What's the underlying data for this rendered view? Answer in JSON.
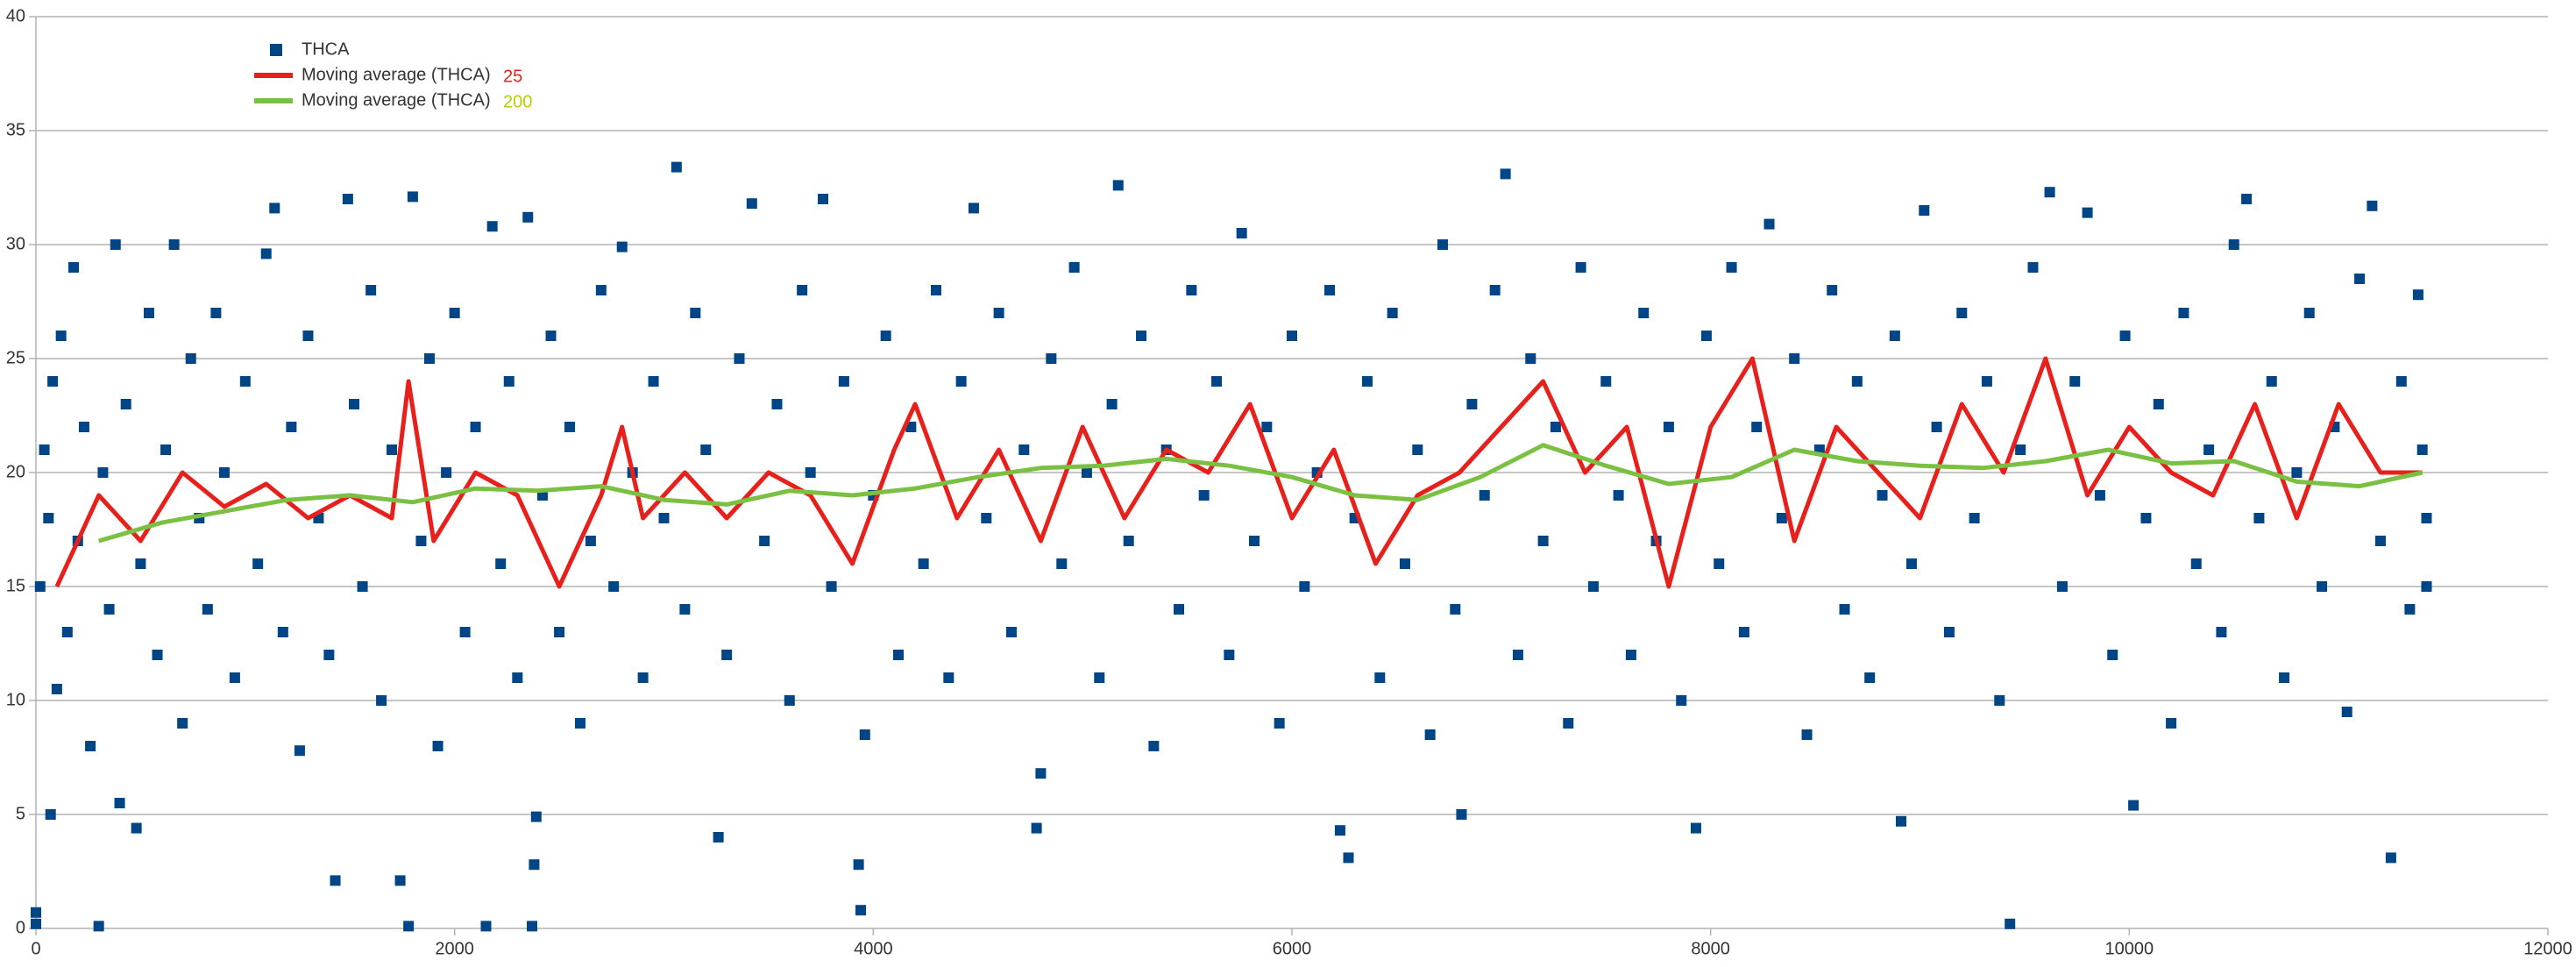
{
  "chart_data": {
    "type": "scatter",
    "xlim": [
      0,
      12000
    ],
    "xticks": [
      0,
      2000,
      4000,
      6000,
      8000,
      10000,
      12000
    ],
    "ylim": [
      0,
      40
    ],
    "yticks": [
      0,
      5,
      10,
      15,
      20,
      25,
      30,
      35,
      40
    ],
    "grid": true,
    "legend": "top-left",
    "series": [
      {
        "name": "THCA",
        "type": "scatter",
        "color": "#004586",
        "x": [
          0,
          0,
          20,
          40,
          60,
          70,
          80,
          100,
          120,
          150,
          180,
          200,
          230,
          260,
          300,
          320,
          350,
          380,
          400,
          430,
          480,
          500,
          540,
          580,
          620,
          660,
          700,
          740,
          780,
          820,
          860,
          900,
          950,
          1000,
          1060,
          1100,
          1140,
          1180,
          1220,
          1260,
          1300,
          1350,
          1400,
          1430,
          1490,
          1520,
          1560,
          1600,
          1650,
          1700,
          1740,
          1780,
          1800,
          1840,
          1880,
          1920,
          1960,
          2000,
          2050,
          2100,
          2150,
          2180,
          2220,
          2260,
          2300,
          2350,
          2370,
          2380,
          2390,
          2420,
          2460,
          2500,
          2550,
          2600,
          2650,
          2700,
          2760,
          2800,
          2850,
          2900,
          2950,
          3000,
          3060,
          3100,
          3150,
          3200,
          3260,
          3300,
          3360,
          3420,
          3480,
          3540,
          3600,
          3660,
          3700,
          3760,
          3800,
          3860,
          3930,
          3940,
          3960,
          4000,
          4060,
          4120,
          4180,
          4240,
          4300,
          4360,
          4420,
          4480,
          4540,
          4600,
          4660,
          4720,
          4780,
          4800,
          4850,
          4900,
          4960,
          5020,
          5080,
          5140,
          5170,
          5220,
          5280,
          5340,
          5400,
          5460,
          5520,
          5580,
          5640,
          5700,
          5760,
          5820,
          5880,
          5940,
          6000,
          6060,
          6120,
          6180,
          6230,
          6270,
          6300,
          6360,
          6420,
          6480,
          6540,
          6600,
          6660,
          6720,
          6780,
          6810,
          6860,
          6920,
          6970,
          7020,
          7080,
          7140,
          7200,
          7260,
          7320,
          7380,
          7440,
          7500,
          7560,
          7620,
          7680,
          7740,
          7800,
          7860,
          7930,
          7980,
          8040,
          8100,
          8160,
          8220,
          8280,
          8340,
          8400,
          8460,
          8520,
          8580,
          8640,
          8700,
          8760,
          8820,
          8880,
          8910,
          8960,
          9020,
          9080,
          9140,
          9200,
          9260,
          9320,
          9380,
          9430,
          9480,
          9540,
          9620,
          9680,
          9740,
          9800,
          9860,
          9920,
          9980,
          10020,
          10080,
          10140,
          10200,
          10260,
          10320,
          10380,
          10440,
          10500,
          10560,
          10620,
          10680,
          10740,
          10800,
          10860,
          10920,
          10980,
          11040,
          11100,
          11160,
          11200,
          11250,
          11300,
          11340,
          11380,
          11400,
          11420,
          11420
        ],
        "values": [
          0.2,
          0.7,
          15,
          21,
          18,
          5,
          24,
          10.5,
          26,
          13,
          29,
          17,
          22,
          8,
          0.1,
          20,
          14,
          30,
          5.5,
          23,
          4.4,
          16,
          27,
          12,
          21,
          30,
          9,
          25,
          18,
          14,
          27,
          20,
          11,
          24,
          16,
          29.6,
          31.6,
          13,
          22,
          7.8,
          26,
          18,
          12,
          2.1,
          32,
          23,
          15,
          28,
          10,
          21,
          2.1,
          0.1,
          32.1,
          17,
          25,
          8,
          20,
          27,
          13,
          22,
          0.1,
          30.8,
          16,
          24,
          11,
          31.2,
          0.1,
          2.8,
          4.9,
          19,
          26,
          13,
          22,
          9,
          17,
          28,
          15,
          29.9,
          20,
          11,
          24,
          18,
          33.4,
          14,
          27,
          21,
          4,
          12,
          25,
          31.8,
          17,
          23,
          10,
          28,
          20,
          32,
          15,
          24,
          2.8,
          0.8,
          8.5,
          19,
          26,
          12,
          22,
          16,
          28,
          11,
          24,
          31.6,
          18,
          27,
          13,
          21,
          4.4,
          6.8,
          25,
          16,
          29,
          20,
          11,
          23,
          32.6,
          17,
          26,
          8,
          21,
          14,
          28,
          19,
          24,
          12,
          30.5,
          17,
          22,
          9,
          26,
          15,
          20,
          28,
          4.3,
          3.1,
          18,
          24,
          11,
          27,
          16,
          21,
          8.5,
          30,
          14,
          5,
          23,
          19,
          28,
          33.1,
          12,
          25,
          17,
          22,
          9,
          29,
          15,
          24,
          19,
          12,
          27,
          17,
          22,
          10,
          4.4,
          26,
          16,
          29,
          13,
          22,
          30.9,
          18,
          25,
          8.5,
          21,
          28,
          14,
          24,
          11,
          19,
          26,
          4.7,
          16,
          31.5,
          22,
          13,
          27,
          18,
          24,
          10,
          0.2,
          21,
          29,
          32.3,
          15,
          24,
          31.4,
          19,
          12,
          26,
          5.4,
          18,
          23,
          9,
          27,
          16,
          21,
          13,
          30,
          32,
          18,
          24,
          11,
          20,
          27,
          15,
          22,
          9.5,
          28.5,
          31.7,
          17,
          3.1,
          24,
          14,
          27.8,
          21,
          15,
          18
        ]
      },
      {
        "name": "Moving average (THCA)",
        "type": "line",
        "color": "#e8201c",
        "period": 25,
        "period_color": "#e8201c",
        "x": [
          100,
          300,
          500,
          700,
          900,
          1100,
          1300,
          1500,
          1700,
          1780,
          1900,
          2100,
          2300,
          2500,
          2700,
          2800,
          2900,
          3100,
          3300,
          3500,
          3700,
          3900,
          4100,
          4200,
          4400,
          4600,
          4800,
          5000,
          5200,
          5400,
          5600,
          5800,
          6000,
          6200,
          6400,
          6600,
          6800,
          7000,
          7200,
          7400,
          7600,
          7800,
          8000,
          8200,
          8400,
          8600,
          8800,
          9000,
          9200,
          9400,
          9600,
          9800,
          10000,
          10200,
          10400,
          10600,
          10800,
          11000,
          11200,
          11400
        ],
        "values": [
          15,
          19,
          17,
          20,
          18.5,
          19.5,
          18,
          19,
          18,
          24,
          17,
          20,
          19,
          15,
          19,
          22,
          18,
          20,
          18,
          20,
          19,
          16,
          21,
          23,
          18,
          21,
          17,
          22,
          18,
          21,
          20,
          23,
          18,
          21,
          16,
          19,
          20,
          22,
          24,
          20,
          22,
          15,
          22,
          25,
          17,
          22,
          20,
          18,
          23,
          20,
          25,
          19,
          22,
          20,
          19,
          23,
          18,
          23,
          20,
          20
        ]
      },
      {
        "name": "Moving average (THCA)",
        "type": "line",
        "color": "#7ac143",
        "period": 200,
        "period_color": "#b5cf00",
        "x": [
          300,
          600,
          900,
          1200,
          1500,
          1800,
          2100,
          2400,
          2700,
          3000,
          3300,
          3600,
          3900,
          4200,
          4500,
          4800,
          5100,
          5400,
          5700,
          6000,
          6300,
          6600,
          6900,
          7200,
          7500,
          7800,
          8100,
          8400,
          8700,
          9000,
          9300,
          9600,
          9900,
          10200,
          10500,
          10800,
          11100,
          11400
        ],
        "values": [
          17,
          17.8,
          18.3,
          18.8,
          19,
          18.7,
          19.3,
          19.2,
          19.4,
          18.8,
          18.6,
          19.2,
          19,
          19.3,
          19.8,
          20.2,
          20.3,
          20.6,
          20.3,
          19.8,
          19,
          18.8,
          19.8,
          21.2,
          20.3,
          19.5,
          19.8,
          21,
          20.5,
          20.3,
          20.2,
          20.5,
          21,
          20.4,
          20.5,
          19.6,
          19.4,
          20
        ]
      }
    ]
  }
}
